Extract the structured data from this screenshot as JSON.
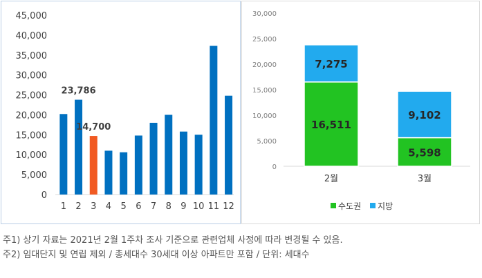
{
  "colors": {
    "primary": "#0070c0",
    "highlight": "#f15a22",
    "metro": "#22c322",
    "region": "#22aaee"
  },
  "chart_data": [
    {
      "type": "bar",
      "categories": [
        "1",
        "2",
        "3",
        "4",
        "5",
        "6",
        "7",
        "8",
        "9",
        "10",
        "11",
        "12"
      ],
      "values": [
        20200,
        23786,
        14700,
        11000,
        10600,
        14800,
        18000,
        20000,
        15800,
        15000,
        37300,
        24800
      ],
      "highlight_index": 2,
      "data_labels": [
        {
          "index": 1,
          "text": "23,786"
        },
        {
          "index": 2,
          "text": "14,700"
        }
      ],
      "ylim": [
        0,
        45000
      ],
      "yticks": [
        "0",
        "5,000",
        "10,000",
        "15,000",
        "20,000",
        "25,000",
        "30,000",
        "35,000",
        "40,000",
        "45,000"
      ],
      "grid": false,
      "title": "",
      "xlabel": "",
      "ylabel": ""
    },
    {
      "type": "bar",
      "stacked": true,
      "categories": [
        "2월",
        "3월"
      ],
      "series": [
        {
          "name": "수도권",
          "values": [
            16511,
            5598
          ],
          "labels": [
            "16,511",
            "5,598"
          ]
        },
        {
          "name": "지방",
          "values": [
            7275,
            9102
          ],
          "labels": [
            "7,275",
            "9,102"
          ]
        }
      ],
      "ylim": [
        0,
        30000
      ],
      "yticks": [
        "0",
        "5,000",
        "10,000",
        "15,000",
        "20,000",
        "25,000",
        "30,000"
      ],
      "grid": false,
      "legend": "bottom",
      "title": "",
      "xlabel": "",
      "ylabel": ""
    }
  ],
  "notes": [
    "주1) 상기 자료는 2021년 2월 1주차 조사 기준으로 관련업체 사정에 따라 변경될 수 있음.",
    "주2) 임대단지 및 연립 제외 / 총세대수 30세대 이상 아파트만 포함 / 단위: 세대수"
  ]
}
